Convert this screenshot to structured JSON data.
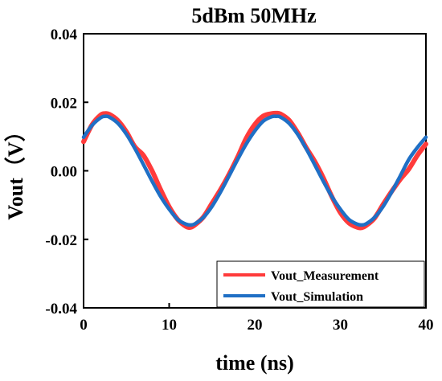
{
  "chart_data": {
    "type": "line",
    "title": "5dBm 50MHz",
    "xlabel": "time (ns)",
    "ylabel": "Vout（V）",
    "xlim": [
      0,
      40
    ],
    "ylim": [
      -0.04,
      0.04
    ],
    "x_ticks": [
      0,
      10,
      20,
      30,
      40
    ],
    "x_tick_labels": [
      "0",
      "10",
      "20",
      "30",
      "40"
    ],
    "y_ticks": [
      -0.04,
      -0.02,
      0.0,
      0.02,
      0.04
    ],
    "y_tick_labels": [
      "-0.04",
      "-0.02",
      "0.00",
      "0.02",
      "0.04"
    ],
    "grid": false,
    "legend_position": "bottom-right",
    "series": [
      {
        "name": "Vout_Measurement",
        "color": "#ff3b3b",
        "x": [
          0,
          1,
          2,
          2.5,
          3,
          4,
          5,
          6,
          7,
          8,
          9,
          10,
          11,
          12,
          12.5,
          13,
          14,
          15,
          16,
          17,
          18,
          19,
          20,
          21,
          22,
          22.5,
          23,
          24,
          25,
          26,
          27,
          28,
          29,
          30,
          31,
          32,
          32.5,
          33,
          34,
          35,
          36,
          37,
          38,
          39,
          40
        ],
        "y": [
          0.0085,
          0.0135,
          0.0163,
          0.0167,
          0.0165,
          0.0147,
          0.0114,
          0.007,
          0.0045,
          0.0,
          -0.0055,
          -0.0105,
          -0.0142,
          -0.0163,
          -0.0165,
          -0.0158,
          -0.0135,
          -0.0095,
          -0.0055,
          -0.001,
          0.004,
          0.0095,
          0.0135,
          0.016,
          0.0167,
          0.0168,
          0.0166,
          0.0148,
          0.0112,
          0.0068,
          0.0028,
          -0.002,
          -0.0075,
          -0.0122,
          -0.0152,
          -0.0165,
          -0.0166,
          -0.016,
          -0.0138,
          -0.0098,
          -0.006,
          -0.0025,
          0.0005,
          0.0045,
          0.0078
        ]
      },
      {
        "name": "Vout_Simulation",
        "color": "#1f6fc5",
        "x": [
          0,
          1,
          2,
          2.5,
          3,
          4,
          5,
          6,
          7,
          8,
          9,
          10,
          11,
          12,
          12.5,
          13,
          14,
          15,
          16,
          17,
          18,
          19,
          20,
          21,
          22,
          22.5,
          23,
          24,
          25,
          26,
          27,
          28,
          29,
          30,
          31,
          32,
          32.5,
          33,
          34,
          35,
          36,
          37,
          38,
          39,
          40
        ],
        "y": [
          0.0098,
          0.0133,
          0.0155,
          0.0159,
          0.0157,
          0.0139,
          0.0107,
          0.0065,
          0.0018,
          -0.003,
          -0.0075,
          -0.0112,
          -0.0142,
          -0.0156,
          -0.0158,
          -0.0155,
          -0.0136,
          -0.0104,
          -0.0062,
          -0.0015,
          0.0033,
          0.0078,
          0.0116,
          0.0145,
          0.0158,
          0.0159,
          0.0157,
          0.0139,
          0.0107,
          0.0065,
          0.0018,
          -0.003,
          -0.0075,
          -0.0112,
          -0.0142,
          -0.0156,
          -0.0158,
          -0.0155,
          -0.0136,
          -0.0104,
          -0.0062,
          -0.0015,
          0.0033,
          0.0068,
          0.0098
        ]
      }
    ]
  }
}
